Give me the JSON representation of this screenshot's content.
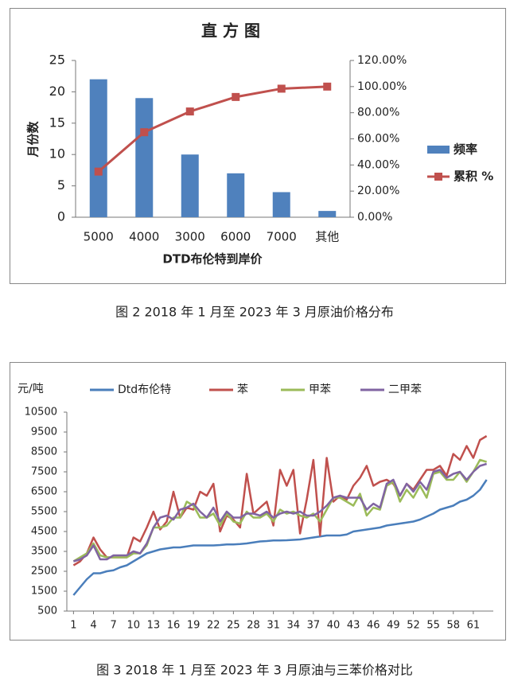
{
  "chart_data": [
    {
      "type": "bar",
      "title": "直 方 图",
      "categories": [
        "5000",
        "4000",
        "3000",
        "6000",
        "7000",
        "其他"
      ],
      "series": [
        {
          "name": "频率",
          "color": "#4f81bd",
          "values": [
            22,
            19,
            10,
            7,
            4,
            1
          ]
        },
        {
          "name": "累积 %",
          "color": "#c0504d",
          "type": "line",
          "axis": "y2",
          "values": [
            34.92,
            65.08,
            80.95,
            92.06,
            98.41,
            100
          ]
        }
      ],
      "x_label": "DTD布伦特到岸价",
      "y_label": "月份数",
      "ylim": [
        0,
        25
      ],
      "yticks": [
        0,
        5,
        10,
        15,
        20,
        25
      ],
      "y2lim": [
        0,
        120
      ],
      "y2ticks": [
        {
          "value": 0,
          "label": "0.00%"
        },
        {
          "value": 20,
          "label": "20.00%"
        },
        {
          "value": 40,
          "label": "40.00%"
        },
        {
          "value": 60,
          "label": "60.00%"
        },
        {
          "value": 80,
          "label": "80.00%"
        },
        {
          "value": 100,
          "label": "100.00%"
        },
        {
          "value": 120,
          "label": "120.00%"
        }
      ],
      "legend": "right",
      "caption": "图 2  2018 年 1 月至 2023 年 3 月原油价格分布"
    },
    {
      "type": "line",
      "y_label": "元/吨",
      "x": [
        1,
        2,
        3,
        4,
        5,
        6,
        7,
        8,
        9,
        10,
        11,
        12,
        13,
        14,
        15,
        16,
        17,
        18,
        19,
        20,
        21,
        22,
        23,
        24,
        25,
        26,
        27,
        28,
        29,
        30,
        31,
        32,
        33,
        34,
        35,
        36,
        37,
        38,
        39,
        40,
        41,
        42,
        43,
        44,
        45,
        46,
        47,
        48,
        49,
        50,
        51,
        52,
        53,
        54,
        55,
        56,
        57,
        58,
        59,
        60,
        61,
        62,
        63
      ],
      "xlim": [
        0,
        64
      ],
      "xticks": [
        1,
        4,
        7,
        10,
        13,
        16,
        19,
        22,
        25,
        28,
        31,
        34,
        37,
        40,
        43,
        46,
        49,
        52,
        55,
        58,
        61
      ],
      "ylim": [
        500,
        10500
      ],
      "yticks": [
        500,
        1500,
        2500,
        3500,
        4500,
        5500,
        6500,
        7500,
        8500,
        9500,
        10500
      ],
      "series": [
        {
          "name": "Dtd布伦特",
          "color": "#4a7ebb",
          "values": [
            1300,
            1700,
            2100,
            2400,
            2400,
            2500,
            2550,
            2700,
            2800,
            3000,
            3200,
            3400,
            3500,
            3600,
            3650,
            3700,
            3700,
            3750,
            3800,
            3800,
            3800,
            3800,
            3820,
            3850,
            3850,
            3870,
            3900,
            3950,
            4000,
            4020,
            4050,
            4050,
            4060,
            4080,
            4100,
            4150,
            4200,
            4250,
            4300,
            4300,
            4300,
            4350,
            4500,
            4550,
            4600,
            4650,
            4700,
            4800,
            4850,
            4900,
            4950,
            5000,
            5100,
            5250,
            5400,
            5600,
            5700,
            5800,
            6000,
            6100,
            6300,
            6600,
            7100
          ]
        },
        {
          "name": "苯",
          "color": "#c0504d",
          "values": [
            2800,
            3000,
            3400,
            4200,
            3600,
            3200,
            3200,
            3200,
            3200,
            4200,
            4000,
            4700,
            5500,
            4600,
            5000,
            6500,
            5200,
            5700,
            5600,
            6500,
            6300,
            6900,
            4500,
            5300,
            5100,
            4700,
            7400,
            5400,
            5700,
            6000,
            4800,
            7600,
            6800,
            7600,
            4400,
            6100,
            8100,
            4300,
            8200,
            6000,
            6300,
            6100,
            6800,
            7200,
            7800,
            6800,
            7000,
            7100,
            6900,
            6300,
            6900,
            6600,
            7100,
            7600,
            7600,
            7800,
            7300,
            8400,
            8100,
            8800,
            8200,
            9100,
            9300
          ]
        },
        {
          "name": "甲苯",
          "color": "#9bbb59",
          "values": [
            3000,
            3200,
            3400,
            3900,
            3300,
            3200,
            3200,
            3200,
            3200,
            3400,
            3400,
            3800,
            4700,
            4700,
            4800,
            5200,
            5200,
            6000,
            5800,
            5200,
            5200,
            5400,
            4800,
            5400,
            5000,
            4900,
            5500,
            5200,
            5200,
            5400,
            5000,
            5600,
            5400,
            5500,
            5300,
            5200,
            5400,
            5000,
            5600,
            6200,
            6200,
            6000,
            5800,
            6400,
            5300,
            5700,
            5600,
            6800,
            7000,
            6000,
            6600,
            6200,
            6800,
            6200,
            7400,
            7500,
            7100,
            7100,
            7500,
            7000,
            7500,
            8100,
            8000
          ]
        },
        {
          "name": "二甲苯",
          "color": "#8064a2",
          "values": [
            3000,
            3100,
            3300,
            3800,
            3100,
            3100,
            3300,
            3300,
            3300,
            3500,
            3400,
            3900,
            4700,
            5200,
            5300,
            5100,
            5600,
            5700,
            5900,
            5500,
            5200,
            5700,
            5000,
            5500,
            5200,
            5200,
            5400,
            5400,
            5300,
            5500,
            5200,
            5400,
            5500,
            5400,
            5500,
            5300,
            5300,
            5500,
            5800,
            6200,
            6300,
            6200,
            6200,
            6200,
            5600,
            5900,
            5700,
            6900,
            7100,
            6300,
            6900,
            6500,
            7000,
            6600,
            7500,
            7600,
            7200,
            7400,
            7500,
            7100,
            7500,
            7800,
            7900
          ]
        }
      ],
      "legend": "top",
      "caption": "图 3 2018 年 1 月至 2023 年 3 月原油与三苯价格对比"
    }
  ]
}
